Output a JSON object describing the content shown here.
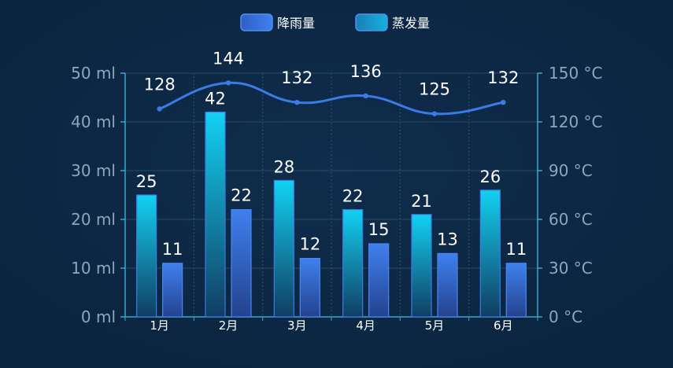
{
  "chart_data": {
    "type": "bar",
    "categories": [
      "1月",
      "2月",
      "3月",
      "4月",
      "5月",
      "6月"
    ],
    "series": [
      {
        "name": "降雨量",
        "type": "bar",
        "axis": "left",
        "values": [
          11,
          22,
          12,
          15,
          13,
          11
        ],
        "color": "#3a7be8"
      },
      {
        "name": "蒸发量",
        "type": "bar",
        "axis": "left",
        "values": [
          25,
          42,
          28,
          22,
          21,
          26
        ],
        "color": "#14c8ec"
      },
      {
        "name": "",
        "type": "line",
        "axis": "right",
        "values": [
          128,
          144,
          132,
          136,
          125,
          132
        ],
        "color": "#3a7be8"
      }
    ],
    "y_left": {
      "min": 0,
      "max": 50,
      "step": 10,
      "unit": "ml"
    },
    "y_right": {
      "min": 0,
      "max": 150,
      "step": 30,
      "unit": "°C"
    },
    "legend": {
      "position": "top-center"
    },
    "grid": true,
    "xlabel": "",
    "ylabel": "",
    "title": ""
  }
}
